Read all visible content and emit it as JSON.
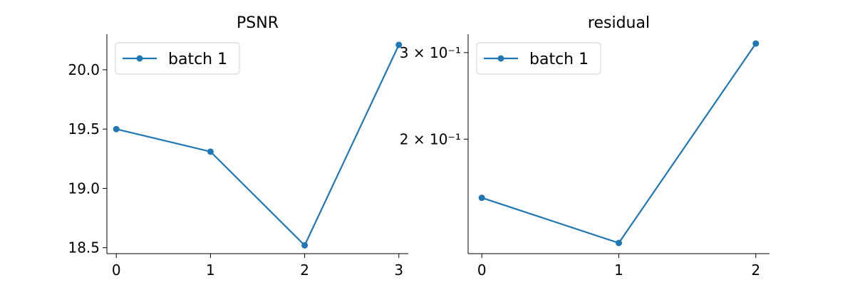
{
  "chart_data": [
    {
      "type": "line",
      "title": "PSNR",
      "xlabel": "",
      "ylabel": "",
      "x": [
        0,
        1,
        2,
        3
      ],
      "series": [
        {
          "name": "batch 1",
          "values": [
            19.5,
            19.31,
            18.52,
            20.21
          ]
        }
      ],
      "x_ticks": [
        "0",
        "1",
        "2",
        "3"
      ],
      "y_ticks": [
        "18.5",
        "19.0",
        "19.5",
        "20.0"
      ],
      "xlim": [
        -0.1,
        3.1
      ],
      "ylim": [
        18.45,
        20.3
      ],
      "y_scale": "linear",
      "grid": false,
      "legend_position": "top-left"
    },
    {
      "type": "line",
      "title": "residual",
      "xlabel": "",
      "ylabel": "",
      "x": [
        0,
        1,
        2
      ],
      "series": [
        {
          "name": "batch 1",
          "values": [
            0.152,
            0.123,
            0.313
          ]
        }
      ],
      "x_ticks": [
        "0",
        "1",
        "2"
      ],
      "y_ticks": [
        "3 × 10⁻¹",
        "2 × 10⁻¹"
      ],
      "y_tick_values": [
        0.3,
        0.2
      ],
      "xlim": [
        -0.1,
        2.1
      ],
      "ylim": [
        0.117,
        0.327
      ],
      "y_scale": "log",
      "grid": false,
      "legend_position": "top-left"
    }
  ],
  "colors": {
    "series": "#1f77b4",
    "axis": "#000000",
    "background": "#ffffff"
  }
}
